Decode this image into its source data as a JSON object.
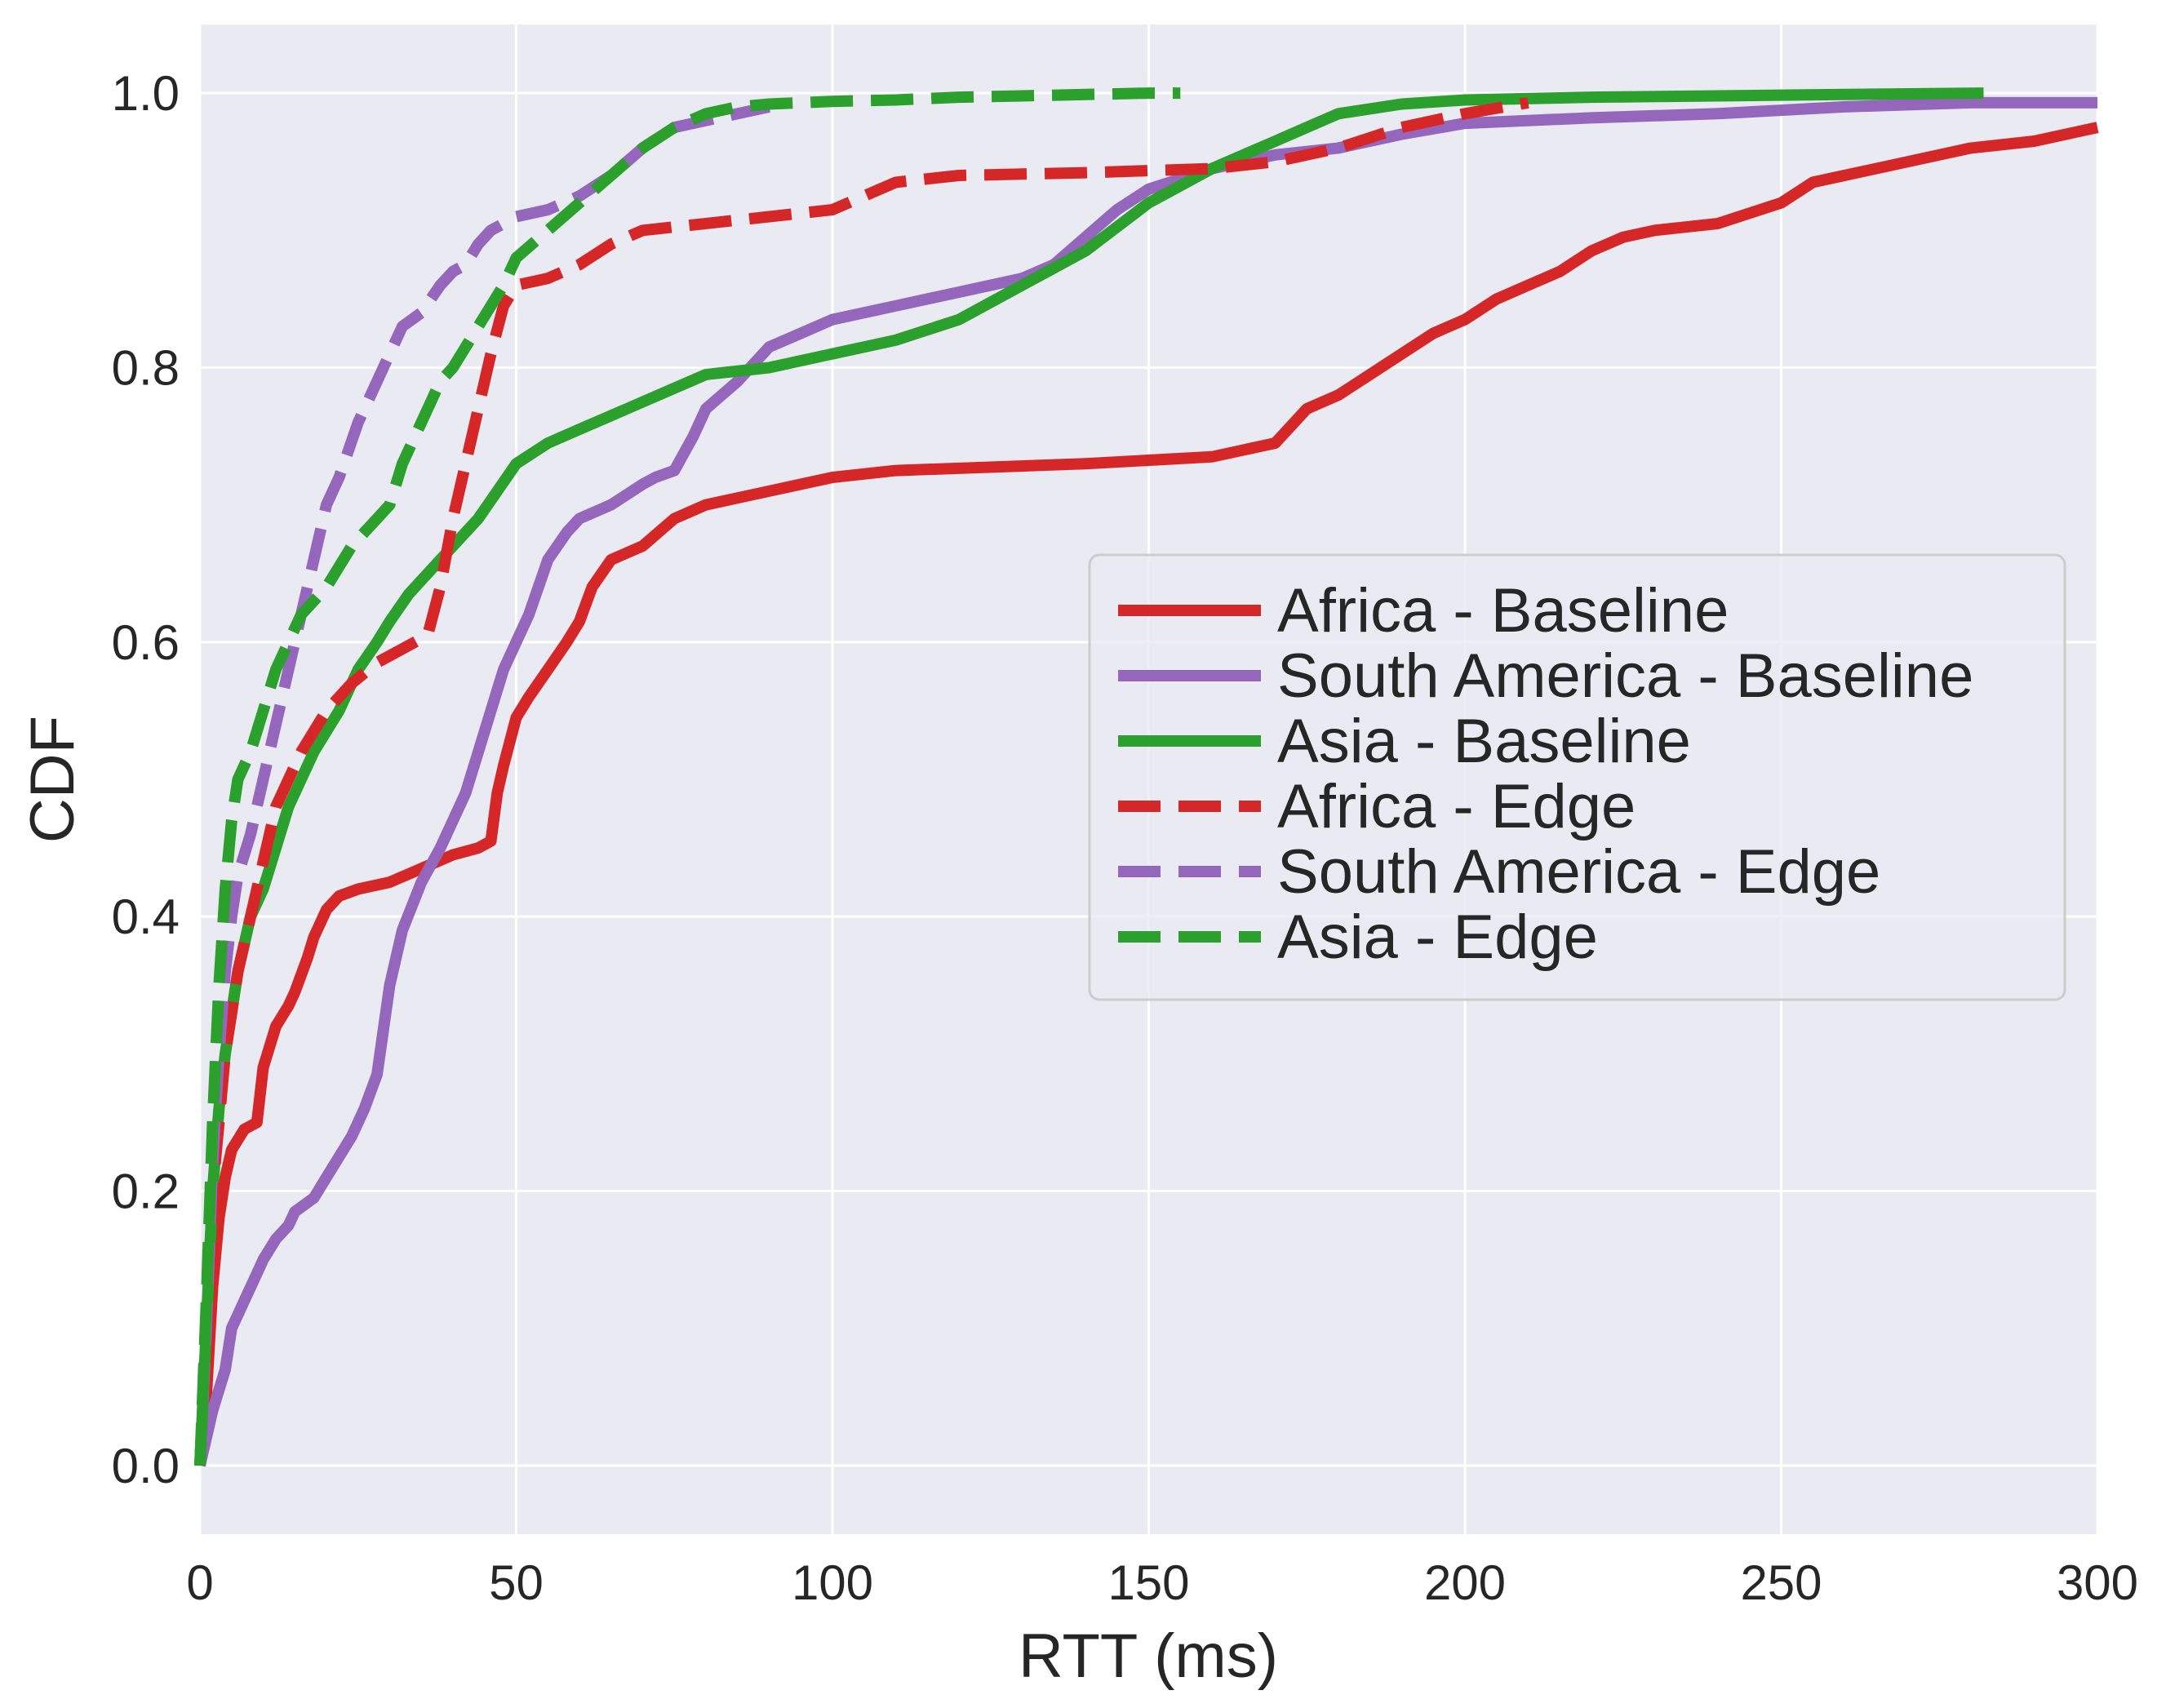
{
  "chart_data": {
    "type": "line",
    "title": "",
    "xlabel": "RTT (ms)",
    "ylabel": "CDF",
    "xlim": [
      0,
      300
    ],
    "ylim": [
      -0.05,
      1.05
    ],
    "xticks": [
      0,
      50,
      100,
      150,
      200,
      250,
      300
    ],
    "xtick_labels": [
      "0",
      "50",
      "100",
      "150",
      "200",
      "250",
      "300"
    ],
    "yticks": [
      0.0,
      0.2,
      0.4,
      0.6,
      0.8,
      1.0
    ],
    "ytick_labels": [
      "0.0",
      "0.2",
      "0.4",
      "0.6",
      "0.8",
      "1.0"
    ],
    "grid": true,
    "legend_position": "center-right",
    "background": "#EAEAF2",
    "series": [
      {
        "name": "Africa - Baseline",
        "color": "#D62728",
        "style": "solid",
        "x": [
          0,
          1,
          2,
          3,
          4,
          5,
          7,
          9,
          10,
          12,
          14,
          15,
          17,
          18,
          19,
          20,
          22,
          25,
          30,
          35,
          40,
          44,
          46,
          47,
          48,
          50,
          52,
          55,
          58,
          60,
          62,
          65,
          70,
          75,
          80,
          85,
          90,
          95,
          100,
          110,
          140,
          160,
          170,
          175,
          180,
          185,
          190,
          195,
          200,
          205,
          210,
          215,
          220,
          225,
          230,
          240,
          250,
          255,
          260,
          270,
          280,
          290,
          300
        ],
        "y": [
          0.0,
          0.05,
          0.13,
          0.18,
          0.21,
          0.23,
          0.245,
          0.25,
          0.29,
          0.32,
          0.335,
          0.345,
          0.37,
          0.385,
          0.395,
          0.405,
          0.415,
          0.42,
          0.425,
          0.435,
          0.445,
          0.45,
          0.455,
          0.49,
          0.51,
          0.545,
          0.56,
          0.58,
          0.6,
          0.615,
          0.64,
          0.66,
          0.67,
          0.69,
          0.7,
          0.705,
          0.71,
          0.715,
          0.72,
          0.725,
          0.73,
          0.735,
          0.745,
          0.77,
          0.78,
          0.795,
          0.81,
          0.825,
          0.835,
          0.85,
          0.86,
          0.87,
          0.885,
          0.895,
          0.9,
          0.905,
          0.92,
          0.935,
          0.94,
          0.95,
          0.96,
          0.965,
          0.975
        ]
      },
      {
        "name": "South America - Baseline",
        "color": "#9467BD",
        "style": "solid",
        "x": [
          0,
          2,
          4,
          5,
          7,
          9,
          10,
          12,
          14,
          15,
          18,
          20,
          22,
          24,
          26,
          28,
          30,
          32,
          35,
          38,
          40,
          42,
          44,
          46,
          48,
          50,
          52,
          55,
          58,
          60,
          65,
          70,
          72,
          75,
          78,
          80,
          85,
          90,
          95,
          100,
          110,
          120,
          130,
          135,
          140,
          145,
          150,
          160,
          170,
          180,
          190,
          200,
          220,
          240,
          260,
          280,
          300
        ],
        "y": [
          0.0,
          0.04,
          0.07,
          0.1,
          0.12,
          0.14,
          0.15,
          0.165,
          0.175,
          0.185,
          0.195,
          0.21,
          0.225,
          0.24,
          0.26,
          0.285,
          0.35,
          0.39,
          0.425,
          0.45,
          0.47,
          0.49,
          0.52,
          0.55,
          0.58,
          0.6,
          0.62,
          0.66,
          0.68,
          0.69,
          0.7,
          0.715,
          0.72,
          0.725,
          0.75,
          0.77,
          0.79,
          0.815,
          0.825,
          0.835,
          0.845,
          0.855,
          0.865,
          0.875,
          0.895,
          0.915,
          0.93,
          0.945,
          0.955,
          0.96,
          0.97,
          0.978,
          0.982,
          0.985,
          0.99,
          0.993,
          0.993
        ]
      },
      {
        "name": "Asia - Baseline",
        "color": "#2CA02C",
        "style": "solid",
        "x": [
          0,
          1,
          2,
          3,
          4,
          5,
          6,
          7,
          8,
          10,
          12,
          14,
          16,
          18,
          20,
          22,
          25,
          28,
          30,
          33,
          36,
          40,
          44,
          47,
          50,
          55,
          60,
          65,
          70,
          75,
          80,
          90,
          100,
          110,
          120,
          130,
          140,
          150,
          160,
          170,
          175,
          180,
          190,
          200,
          220,
          240,
          260,
          282
        ],
        "y": [
          0.0,
          0.1,
          0.2,
          0.26,
          0.3,
          0.33,
          0.36,
          0.38,
          0.4,
          0.42,
          0.45,
          0.48,
          0.5,
          0.52,
          0.535,
          0.55,
          0.58,
          0.6,
          0.615,
          0.635,
          0.65,
          0.67,
          0.69,
          0.71,
          0.73,
          0.745,
          0.755,
          0.765,
          0.775,
          0.785,
          0.795,
          0.8,
          0.81,
          0.82,
          0.835,
          0.86,
          0.885,
          0.92,
          0.945,
          0.965,
          0.975,
          0.985,
          0.992,
          0.995,
          0.997,
          0.998,
          0.999,
          1.0
        ]
      },
      {
        "name": "Africa - Edge",
        "color": "#D62728",
        "style": "dashed",
        "x": [
          0,
          1,
          2,
          3,
          4,
          5,
          6,
          8,
          10,
          12,
          14,
          16,
          18,
          20,
          24,
          28,
          32,
          36,
          38,
          40,
          42,
          44,
          46,
          48,
          50,
          55,
          60,
          65,
          70,
          80,
          90,
          100,
          110,
          120,
          140,
          160,
          170,
          180,
          190,
          200,
          210
        ],
        "y": [
          0.0,
          0.1,
          0.2,
          0.25,
          0.3,
          0.33,
          0.36,
          0.4,
          0.44,
          0.48,
          0.5,
          0.52,
          0.535,
          0.55,
          0.57,
          0.585,
          0.595,
          0.605,
          0.64,
          0.69,
          0.73,
          0.77,
          0.81,
          0.845,
          0.86,
          0.865,
          0.875,
          0.89,
          0.9,
          0.905,
          0.91,
          0.915,
          0.935,
          0.94,
          0.942,
          0.945,
          0.95,
          0.96,
          0.975,
          0.985,
          0.993
        ]
      },
      {
        "name": "South America - Edge",
        "color": "#9467BD",
        "style": "dashed",
        "x": [
          0,
          1,
          2,
          3,
          4,
          5,
          6,
          8,
          10,
          12,
          14,
          16,
          18,
          20,
          22,
          25,
          28,
          30,
          32,
          35,
          38,
          40,
          42,
          44,
          46,
          48,
          50,
          55,
          60,
          65,
          70,
          75,
          80,
          85,
          90
        ],
        "y": [
          0.0,
          0.1,
          0.22,
          0.3,
          0.36,
          0.4,
          0.43,
          0.46,
          0.5,
          0.54,
          0.58,
          0.62,
          0.66,
          0.7,
          0.72,
          0.76,
          0.79,
          0.81,
          0.83,
          0.84,
          0.86,
          0.87,
          0.875,
          0.89,
          0.9,
          0.905,
          0.91,
          0.915,
          0.925,
          0.94,
          0.96,
          0.975,
          0.98,
          0.985,
          0.99
        ]
      },
      {
        "name": "Asia - Edge",
        "color": "#2CA02C",
        "style": "dashed",
        "x": [
          0,
          1,
          2,
          3,
          4,
          5,
          6,
          8,
          10,
          12,
          14,
          16,
          18,
          20,
          24,
          28,
          30,
          32,
          35,
          38,
          40,
          44,
          48,
          50,
          55,
          60,
          65,
          70,
          75,
          80,
          85,
          90,
          100,
          110,
          120,
          130,
          140,
          150,
          155
        ],
        "y": [
          0.0,
          0.12,
          0.25,
          0.35,
          0.42,
          0.47,
          0.5,
          0.52,
          0.55,
          0.58,
          0.6,
          0.62,
          0.63,
          0.64,
          0.67,
          0.69,
          0.7,
          0.73,
          0.76,
          0.79,
          0.8,
          0.83,
          0.86,
          0.88,
          0.9,
          0.92,
          0.94,
          0.96,
          0.975,
          0.985,
          0.99,
          0.992,
          0.994,
          0.995,
          0.997,
          0.998,
          0.999,
          1.0,
          1.0
        ]
      }
    ]
  }
}
